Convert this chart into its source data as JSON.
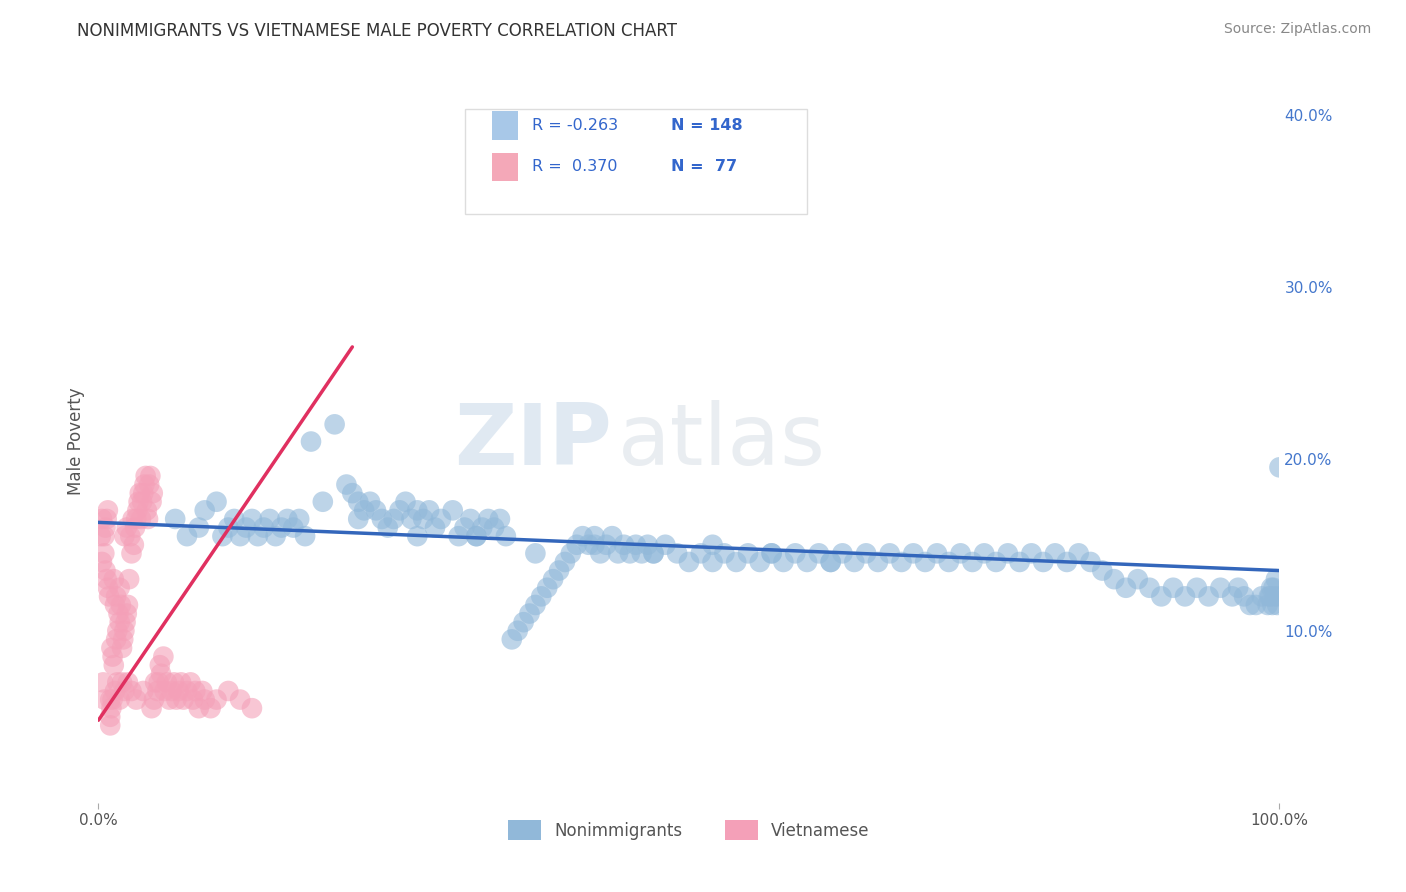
{
  "title": "NONIMMIGRANTS VS VIETNAMESE MALE POVERTY CORRELATION CHART",
  "source": "Source: ZipAtlas.com",
  "ylabel": "Male Poverty",
  "xlim": [
    0.0,
    1.0
  ],
  "ylim": [
    0.0,
    0.42
  ],
  "ytick_labels_right": [
    "10.0%",
    "20.0%",
    "30.0%",
    "40.0%"
  ],
  "ytick_vals_right": [
    0.1,
    0.2,
    0.3,
    0.4
  ],
  "legend": {
    "R1": "-0.263",
    "N1": "148",
    "R2": "0.370",
    "N2": "77",
    "color1": "#a8c8e8",
    "color2": "#f4a8b8"
  },
  "blue_line": {
    "x0": 0.0,
    "y0": 0.163,
    "x1": 1.0,
    "y1": 0.135
  },
  "pink_line": {
    "x0": 0.0,
    "y0": 0.048,
    "x1": 0.215,
    "y1": 0.265
  },
  "nonimmigrants_x": [
    0.065,
    0.075,
    0.085,
    0.09,
    0.1,
    0.105,
    0.11,
    0.115,
    0.12,
    0.125,
    0.13,
    0.135,
    0.14,
    0.145,
    0.15,
    0.155,
    0.16,
    0.165,
    0.17,
    0.175,
    0.18,
    0.19,
    0.2,
    0.21,
    0.215,
    0.22,
    0.225,
    0.23,
    0.235,
    0.24,
    0.245,
    0.25,
    0.255,
    0.26,
    0.265,
    0.27,
    0.275,
    0.28,
    0.285,
    0.29,
    0.3,
    0.305,
    0.31,
    0.315,
    0.32,
    0.325,
    0.33,
    0.335,
    0.34,
    0.345,
    0.35,
    0.355,
    0.36,
    0.365,
    0.37,
    0.375,
    0.38,
    0.385,
    0.39,
    0.395,
    0.4,
    0.405,
    0.41,
    0.415,
    0.42,
    0.425,
    0.43,
    0.435,
    0.44,
    0.445,
    0.45,
    0.455,
    0.46,
    0.465,
    0.47,
    0.48,
    0.49,
    0.5,
    0.51,
    0.52,
    0.53,
    0.54,
    0.55,
    0.56,
    0.57,
    0.58,
    0.59,
    0.6,
    0.61,
    0.62,
    0.63,
    0.64,
    0.65,
    0.66,
    0.67,
    0.68,
    0.69,
    0.7,
    0.71,
    0.72,
    0.73,
    0.74,
    0.75,
    0.76,
    0.77,
    0.78,
    0.79,
    0.8,
    0.81,
    0.82,
    0.83,
    0.84,
    0.85,
    0.86,
    0.87,
    0.88,
    0.89,
    0.9,
    0.91,
    0.92,
    0.93,
    0.94,
    0.95,
    0.96,
    0.965,
    0.97,
    0.975,
    0.98,
    0.985,
    0.99,
    0.992,
    0.994,
    0.996,
    0.998,
    1.0,
    0.995,
    0.997,
    0.999,
    0.993,
    0.991,
    0.22,
    0.27,
    0.32,
    0.37,
    0.42,
    0.47,
    0.52,
    0.57,
    0.62
  ],
  "nonimmigrants_y": [
    0.165,
    0.155,
    0.16,
    0.17,
    0.175,
    0.155,
    0.16,
    0.165,
    0.155,
    0.16,
    0.165,
    0.155,
    0.16,
    0.165,
    0.155,
    0.16,
    0.165,
    0.16,
    0.165,
    0.155,
    0.21,
    0.175,
    0.22,
    0.185,
    0.18,
    0.175,
    0.17,
    0.175,
    0.17,
    0.165,
    0.16,
    0.165,
    0.17,
    0.175,
    0.165,
    0.17,
    0.165,
    0.17,
    0.16,
    0.165,
    0.17,
    0.155,
    0.16,
    0.165,
    0.155,
    0.16,
    0.165,
    0.16,
    0.165,
    0.155,
    0.095,
    0.1,
    0.105,
    0.11,
    0.115,
    0.12,
    0.125,
    0.13,
    0.135,
    0.14,
    0.145,
    0.15,
    0.155,
    0.15,
    0.155,
    0.145,
    0.15,
    0.155,
    0.145,
    0.15,
    0.145,
    0.15,
    0.145,
    0.15,
    0.145,
    0.15,
    0.145,
    0.14,
    0.145,
    0.14,
    0.145,
    0.14,
    0.145,
    0.14,
    0.145,
    0.14,
    0.145,
    0.14,
    0.145,
    0.14,
    0.145,
    0.14,
    0.145,
    0.14,
    0.145,
    0.14,
    0.145,
    0.14,
    0.145,
    0.14,
    0.145,
    0.14,
    0.145,
    0.14,
    0.145,
    0.14,
    0.145,
    0.14,
    0.145,
    0.14,
    0.145,
    0.14,
    0.135,
    0.13,
    0.125,
    0.13,
    0.125,
    0.12,
    0.125,
    0.12,
    0.125,
    0.12,
    0.125,
    0.12,
    0.125,
    0.12,
    0.115,
    0.115,
    0.12,
    0.115,
    0.12,
    0.115,
    0.12,
    0.115,
    0.195,
    0.125,
    0.13,
    0.12,
    0.125,
    0.12,
    0.165,
    0.155,
    0.155,
    0.145,
    0.15,
    0.145,
    0.15,
    0.145,
    0.14
  ],
  "vietnamese_x": [
    0.003,
    0.005,
    0.006,
    0.007,
    0.008,
    0.009,
    0.01,
    0.01,
    0.011,
    0.012,
    0.013,
    0.013,
    0.014,
    0.015,
    0.015,
    0.016,
    0.017,
    0.018,
    0.018,
    0.019,
    0.02,
    0.02,
    0.021,
    0.022,
    0.022,
    0.023,
    0.024,
    0.024,
    0.025,
    0.026,
    0.027,
    0.028,
    0.029,
    0.03,
    0.031,
    0.032,
    0.033,
    0.034,
    0.035,
    0.036,
    0.037,
    0.038,
    0.039,
    0.04,
    0.041,
    0.042,
    0.043,
    0.044,
    0.045,
    0.046,
    0.047,
    0.048,
    0.05,
    0.051,
    0.052,
    0.053,
    0.055,
    0.056,
    0.058,
    0.06,
    0.062,
    0.064,
    0.066,
    0.068,
    0.07,
    0.072,
    0.075,
    0.078,
    0.08,
    0.082,
    0.085,
    0.088,
    0.09,
    0.095,
    0.1,
    0.11,
    0.12,
    0.13,
    0.002,
    0.003,
    0.004,
    0.005,
    0.005,
    0.006,
    0.007,
    0.008,
    0.01,
    0.011,
    0.012,
    0.014,
    0.016,
    0.018,
    0.022,
    0.025,
    0.028,
    0.032,
    0.038,
    0.045
  ],
  "vietnamese_y": [
    0.14,
    0.145,
    0.135,
    0.13,
    0.125,
    0.12,
    0.06,
    0.045,
    0.09,
    0.085,
    0.08,
    0.13,
    0.115,
    0.095,
    0.12,
    0.1,
    0.11,
    0.105,
    0.125,
    0.115,
    0.09,
    0.07,
    0.095,
    0.1,
    0.155,
    0.105,
    0.11,
    0.16,
    0.115,
    0.13,
    0.155,
    0.145,
    0.165,
    0.15,
    0.16,
    0.165,
    0.17,
    0.175,
    0.18,
    0.165,
    0.175,
    0.18,
    0.185,
    0.19,
    0.17,
    0.165,
    0.185,
    0.19,
    0.175,
    0.18,
    0.06,
    0.07,
    0.065,
    0.07,
    0.08,
    0.075,
    0.085,
    0.065,
    0.07,
    0.06,
    0.065,
    0.07,
    0.06,
    0.065,
    0.07,
    0.06,
    0.065,
    0.07,
    0.06,
    0.065,
    0.055,
    0.065,
    0.06,
    0.055,
    0.06,
    0.065,
    0.06,
    0.055,
    0.155,
    0.165,
    0.07,
    0.06,
    0.155,
    0.16,
    0.165,
    0.17,
    0.05,
    0.055,
    0.06,
    0.065,
    0.07,
    0.06,
    0.065,
    0.07,
    0.065,
    0.06,
    0.065,
    0.055
  ],
  "scatter_blue_color": "#91b8d9",
  "scatter_pink_color": "#f4a0b8",
  "trend_blue_color": "#3366bb",
  "trend_pink_color": "#e03060",
  "watermark_zip": "ZIP",
  "watermark_atlas": "atlas",
  "background_color": "#ffffff",
  "grid_color": "#cccccc"
}
